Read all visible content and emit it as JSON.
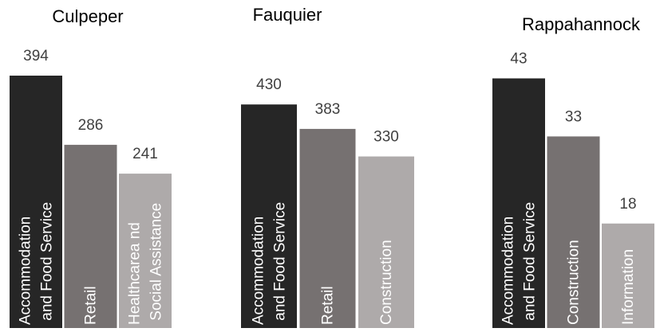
{
  "chart_data": [
    {
      "type": "bar",
      "title": "Culpeper",
      "categories": [
        "Accommodation and Food Service",
        "Retail",
        "Healthcarea nd Social Assistance"
      ],
      "values": [
        394,
        286,
        241
      ],
      "colors": [
        "#262626",
        "#767171",
        "#aeaaaa"
      ],
      "ylim": [
        0,
        435
      ]
    },
    {
      "type": "bar",
      "title": "Fauquier",
      "categories": [
        "Accommodation and Food Service",
        "Retail",
        "Construction"
      ],
      "values": [
        430,
        383,
        330
      ],
      "colors": [
        "#262626",
        "#767171",
        "#aeaaaa"
      ],
      "ylim": [
        0,
        536
      ]
    },
    {
      "type": "bar",
      "title": "Rappahannock",
      "categories": [
        "Accommodation and Food Service",
        "Construction",
        "Information"
      ],
      "values": [
        43,
        33,
        18
      ],
      "colors": [
        "#262626",
        "#767171",
        "#aeaaaa"
      ],
      "ylim": [
        0,
        48
      ]
    }
  ]
}
